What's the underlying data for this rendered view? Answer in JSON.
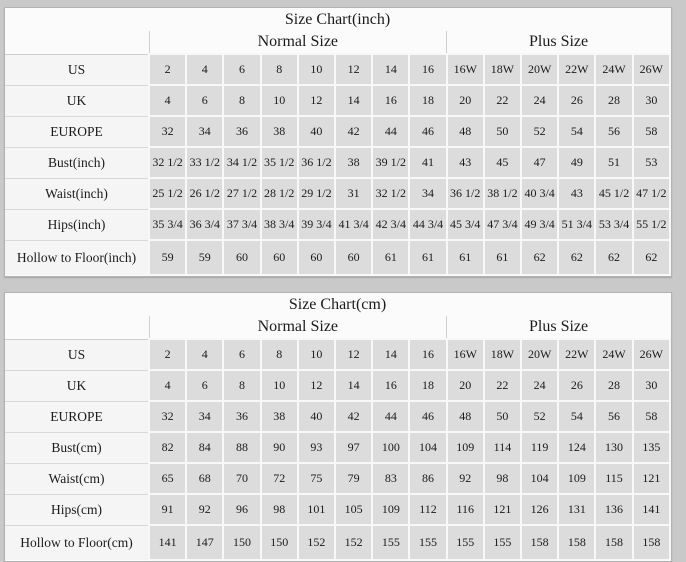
{
  "page": {
    "background_color": "#c9c9c9",
    "panel_color": "#fbfbfb",
    "data_cell_color": "#dcdcdc",
    "text_color": "#1b1b1b"
  },
  "chart_data": [
    {
      "type": "table",
      "title": "Size Chart(inch)",
      "group_headers": [
        {
          "label": "Normal Size",
          "span": 8
        },
        {
          "label": "Plus Size",
          "span": 6
        }
      ],
      "rows": [
        {
          "label": "US",
          "values": [
            "2",
            "4",
            "6",
            "8",
            "10",
            "12",
            "14",
            "16",
            "16W",
            "18W",
            "20W",
            "22W",
            "24W",
            "26W"
          ]
        },
        {
          "label": "UK",
          "values": [
            "4",
            "6",
            "8",
            "10",
            "12",
            "14",
            "16",
            "18",
            "20",
            "22",
            "24",
            "26",
            "28",
            "30"
          ]
        },
        {
          "label": "EUROPE",
          "values": [
            "32",
            "34",
            "36",
            "38",
            "40",
            "42",
            "44",
            "46",
            "48",
            "50",
            "52",
            "54",
            "56",
            "58"
          ]
        },
        {
          "label": "Bust(inch)",
          "values": [
            "32 1/2",
            "33 1/2",
            "34 1/2",
            "35 1/2",
            "36 1/2",
            "38",
            "39 1/2",
            "41",
            "43",
            "45",
            "47",
            "49",
            "51",
            "53"
          ]
        },
        {
          "label": "Waist(inch)",
          "values": [
            "25 1/2",
            "26 1/2",
            "27 1/2",
            "28 1/2",
            "29 1/2",
            "31",
            "32 1/2",
            "34",
            "36 1/2",
            "38 1/2",
            "40 3/4",
            "43",
            "45 1/2",
            "47 1/2"
          ]
        },
        {
          "label": "Hips(inch)",
          "values": [
            "35 3/4",
            "36 3/4",
            "37 3/4",
            "38 3/4",
            "39 3/4",
            "41 3/4",
            "42 3/4",
            "44 3/4",
            "45 3/4",
            "47 3/4",
            "49 3/4",
            "51 3/4",
            "53 3/4",
            "55 1/2"
          ]
        },
        {
          "label": "Hollow to Floor(inch)",
          "values": [
            "59",
            "59",
            "60",
            "60",
            "60",
            "60",
            "61",
            "61",
            "61",
            "61",
            "62",
            "62",
            "62",
            "62"
          ]
        }
      ]
    },
    {
      "type": "table",
      "title": "Size Chart(cm)",
      "group_headers": [
        {
          "label": "Normal Size",
          "span": 8
        },
        {
          "label": "Plus Size",
          "span": 6
        }
      ],
      "rows": [
        {
          "label": "US",
          "values": [
            "2",
            "4",
            "6",
            "8",
            "10",
            "12",
            "14",
            "16",
            "16W",
            "18W",
            "20W",
            "22W",
            "24W",
            "26W"
          ]
        },
        {
          "label": "UK",
          "values": [
            "4",
            "6",
            "8",
            "10",
            "12",
            "14",
            "16",
            "18",
            "20",
            "22",
            "24",
            "26",
            "28",
            "30"
          ]
        },
        {
          "label": "EUROPE",
          "values": [
            "32",
            "34",
            "36",
            "38",
            "40",
            "42",
            "44",
            "46",
            "48",
            "50",
            "52",
            "54",
            "56",
            "58"
          ]
        },
        {
          "label": "Bust(cm)",
          "values": [
            "82",
            "84",
            "88",
            "90",
            "93",
            "97",
            "100",
            "104",
            "109",
            "114",
            "119",
            "124",
            "130",
            "135"
          ]
        },
        {
          "label": "Waist(cm)",
          "values": [
            "65",
            "68",
            "70",
            "72",
            "75",
            "79",
            "83",
            "86",
            "92",
            "98",
            "104",
            "109",
            "115",
            "121"
          ]
        },
        {
          "label": "Hips(cm)",
          "values": [
            "91",
            "92",
            "96",
            "98",
            "101",
            "105",
            "109",
            "112",
            "116",
            "121",
            "126",
            "131",
            "136",
            "141"
          ]
        },
        {
          "label": "Hollow to Floor(cm)",
          "values": [
            "141",
            "147",
            "150",
            "150",
            "152",
            "152",
            "155",
            "155",
            "155",
            "155",
            "158",
            "158",
            "158",
            "158"
          ]
        }
      ]
    }
  ]
}
